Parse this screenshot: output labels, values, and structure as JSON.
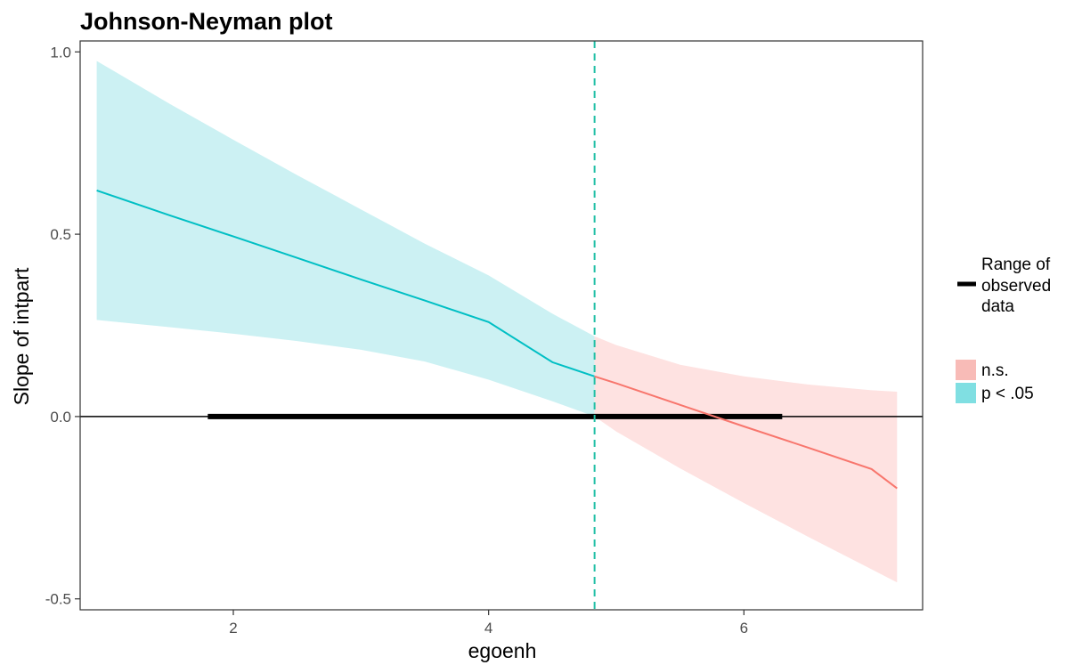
{
  "chart_data": {
    "type": "line",
    "title": "Johnson-Neyman plot",
    "xlabel": "egoenh",
    "ylabel": "Slope of intpart",
    "xlim": [
      0.8,
      7.4
    ],
    "ylim": [
      -0.53,
      1.03
    ],
    "x_ticks": [
      2,
      4,
      6
    ],
    "y_ticks": [
      -0.5,
      0.0,
      0.5,
      1.0
    ],
    "x_tick_labels": [
      "2",
      "4",
      "6"
    ],
    "y_tick_labels": [
      "-0.5",
      "0.0",
      "0.5",
      "1.0"
    ],
    "grid": false,
    "johnson_neyman_boundary": 4.83,
    "observed_range": [
      1.8,
      6.3
    ],
    "zero_line": 0.0,
    "series": [
      {
        "name": "p < .05",
        "color": "#00BFC4",
        "fill_color": "#CCF1F3",
        "x": [
          0.93,
          1.5,
          2.0,
          2.5,
          3.0,
          3.5,
          4.0,
          4.5,
          4.83
        ],
        "y": [
          0.62,
          0.552,
          0.494,
          0.435,
          0.376,
          0.318,
          0.259,
          0.149,
          0.11
        ],
        "lower": [
          0.265,
          0.245,
          0.227,
          0.207,
          0.183,
          0.151,
          0.101,
          0.042,
          0.0
        ],
        "upper": [
          0.975,
          0.858,
          0.759,
          0.662,
          0.568,
          0.474,
          0.387,
          0.282,
          0.22
        ]
      },
      {
        "name": "n.s.",
        "color": "#F8766D",
        "fill_color": "#FEE2E1",
        "x": [
          4.83,
          5.0,
          5.5,
          6.0,
          6.5,
          7.0,
          7.2
        ],
        "y": [
          0.11,
          0.091,
          0.032,
          -0.027,
          -0.085,
          -0.144,
          -0.197
        ],
        "lower": [
          0.0,
          -0.041,
          -0.142,
          -0.237,
          -0.329,
          -0.419,
          -0.455
        ],
        "upper": [
          0.22,
          0.196,
          0.142,
          0.11,
          0.088,
          0.072,
          0.068
        ]
      }
    ],
    "legend": {
      "placement": "right",
      "range_label_lines": [
        "Range of",
        "observed",
        "data"
      ],
      "entries": [
        {
          "label": "n.s.",
          "color": "#F8BBB7"
        },
        {
          "label": "p < .05",
          "color": "#80DFE2"
        }
      ]
    }
  }
}
